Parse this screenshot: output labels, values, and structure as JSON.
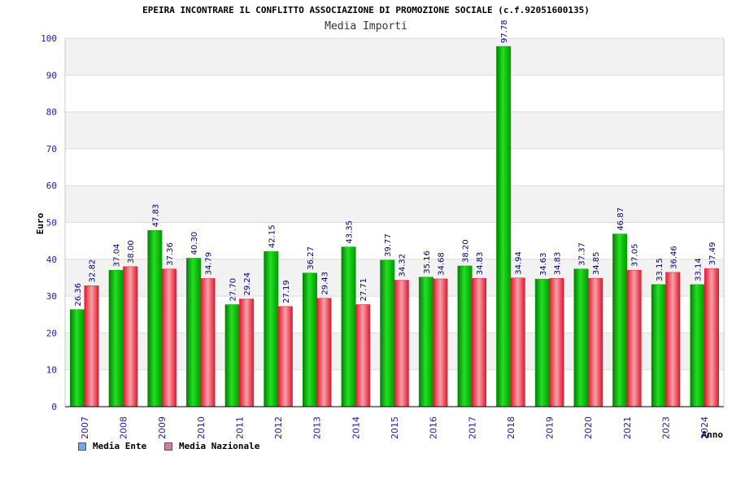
{
  "chart_data": {
    "type": "bar",
    "title": "EPEIRA INCONTRARE IL CONFLITTO ASSOCIAZIONE DI PROMOZIONE SOCIALE (c.f.92051600135)",
    "subtitle": "Media Importi",
    "xlabel": "Anno",
    "ylabel": "Euro",
    "ylim": [
      0,
      100
    ],
    "yticks": [
      0,
      10,
      20,
      30,
      40,
      50,
      60,
      70,
      80,
      90,
      100
    ],
    "grid": true,
    "legend_position": "bottom-left",
    "categories": [
      "2007",
      "2008",
      "2009",
      "2010",
      "2011",
      "2012",
      "2013",
      "2014",
      "2015",
      "2016",
      "2017",
      "2018",
      "2019",
      "2020",
      "2021",
      "2023",
      "2024"
    ],
    "series": [
      {
        "name": "Media Ente",
        "color": "#00b400",
        "legend_color": "#6fa8e8",
        "values": [
          26.36,
          37.04,
          47.83,
          40.3,
          27.7,
          42.15,
          36.27,
          43.35,
          39.77,
          35.16,
          38.2,
          97.78,
          34.63,
          37.37,
          46.87,
          33.15,
          33.14
        ],
        "labels": [
          "26.36",
          "37.04",
          "47.83",
          "40.30",
          "27.70",
          "42.15",
          "36.27",
          "43.35",
          "39.77",
          "35.16",
          "38.20",
          "97.78",
          "34.63",
          "37.37",
          "46.87",
          "33.15",
          "33.14"
        ]
      },
      {
        "name": "Media Nazionale",
        "color": "#e0303c",
        "legend_color": "#d97aa6",
        "values": [
          32.82,
          38.0,
          37.36,
          34.79,
          29.24,
          27.19,
          29.43,
          27.71,
          34.32,
          34.68,
          34.83,
          34.94,
          34.83,
          34.85,
          37.05,
          36.46,
          37.49
        ],
        "labels": [
          "32.82",
          "38.00",
          "37.36",
          "34.79",
          "29.24",
          "27.19",
          "29.43",
          "27.71",
          "34.32",
          "34.68",
          "34.83",
          "34.94",
          "34.83",
          "34.85",
          "37.05",
          "36.46",
          "37.49"
        ]
      }
    ]
  }
}
